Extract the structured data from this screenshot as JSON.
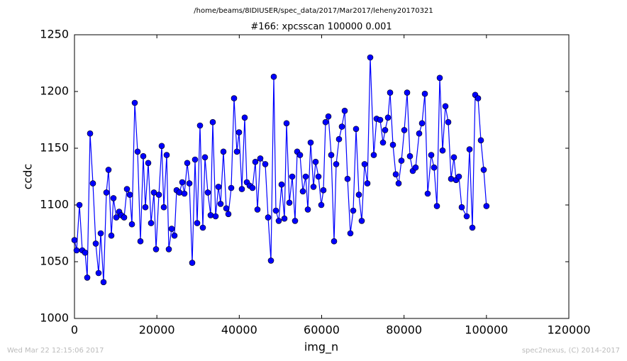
{
  "chart_data": {
    "type": "line",
    "suptitle": "/home/beams/8IDIUSER/spec_data/2017/Mar2017/leheny20170321",
    "title": "#166: xpcsscan 100000 0.001",
    "xlabel": "img_n",
    "ylabel": "ccdc",
    "footer_left": "Wed Mar 22 12:15:06 2017",
    "footer_right": "spec2nexus, (C) 2014-2017",
    "xlim": [
      0,
      120000
    ],
    "xticks": [
      0,
      20000,
      40000,
      60000,
      80000,
      100000,
      120000
    ],
    "ylim": [
      1000,
      1250
    ],
    "yticks": [
      1000,
      1050,
      1100,
      1150,
      1200,
      1250
    ],
    "grid": false,
    "x": [
      0,
      517,
      1205,
      1894,
      2583,
      3099,
      3788,
      4476,
      5165,
      5854,
      6370,
      7059,
      7748,
      8264,
      8953,
      9469,
      10158,
      10847,
      11363,
      12052,
      12740,
      13429,
      13946,
      14634,
      15323,
      16012,
      16700,
      17217,
      17906,
      18594,
      19283,
      19799,
      20488,
      21177,
      21693,
      22382,
      22898,
      23587,
      24276,
      24792,
      25481,
      26169,
      26686,
      27375,
      27891,
      28580,
      29268,
      29785,
      30473,
      31162,
      31679,
      32367,
      33056,
      33572,
      34261,
      34950,
      35466,
      36155,
      36844,
      37360,
      38049,
      38737,
      39426,
      39943,
      40631,
      41320,
      41836,
      42525,
      43214,
      43902,
      44419,
      45108,
      46313,
      47001,
      47690,
      48379,
      48895,
      49584,
      50273,
      50961,
      51478,
      52166,
      52855,
      53544,
      54060,
      54749,
      55438,
      56126,
      56643,
      57331,
      58020,
      58537,
      59225,
      59914,
      60430,
      60947,
      61636,
      62324,
      63013,
      63529,
      64218,
      64907,
      65595,
      66284,
      66973,
      67661,
      68350,
      69039,
      69727,
      70416,
      71105,
      71793,
      72654,
      73343,
      74204,
      74893,
      75409,
      76098,
      76614,
      77303,
      77992,
      78680,
      79369,
      80058,
      80746,
      81435,
      82124,
      82812,
      83673,
      84362,
      85051,
      85739,
      86600,
      87289,
      87977,
      88666,
      89355,
      90043,
      90732,
      91421,
      92109,
      92626,
      93314,
      94003,
      95208,
      95897,
      96585,
      97274,
      97963,
      98651,
      99340,
      100000
    ],
    "series": [
      {
        "name": "ccdc",
        "color": "#0000ff",
        "values": [
          1069,
          1060,
          1100,
          1060,
          1058,
          1036,
          1163,
          1119,
          1066,
          1040,
          1075,
          1032,
          1111,
          1131,
          1073,
          1106,
          1089,
          1094,
          1091,
          1089,
          1114,
          1109,
          1083,
          1190,
          1147,
          1068,
          1143,
          1098,
          1137,
          1084,
          1111,
          1061,
          1109,
          1152,
          1098,
          1144,
          1061,
          1079,
          1073,
          1113,
          1111,
          1120,
          1110,
          1137,
          1119,
          1049,
          1140,
          1084,
          1170,
          1080,
          1142,
          1111,
          1091,
          1173,
          1090,
          1116,
          1101,
          1147,
          1097,
          1092,
          1115,
          1194,
          1147,
          1164,
          1114,
          1177,
          1120,
          1117,
          1115,
          1138,
          1096,
          1141,
          1136,
          1089,
          1051,
          1213,
          1095,
          1086,
          1118,
          1088,
          1172,
          1102,
          1125,
          1086,
          1147,
          1144,
          1112,
          1125,
          1096,
          1155,
          1116,
          1138,
          1125,
          1100,
          1113,
          1173,
          1178,
          1144,
          1068,
          1136,
          1158,
          1169,
          1183,
          1123,
          1075,
          1095,
          1167,
          1109,
          1086,
          1136,
          1119,
          1230,
          1144,
          1176,
          1175,
          1155,
          1166,
          1177,
          1199,
          1153,
          1127,
          1119,
          1139,
          1166,
          1199,
          1143,
          1130,
          1133,
          1163,
          1172,
          1198,
          1110,
          1144,
          1133,
          1099,
          1212,
          1148,
          1187,
          1173,
          1123,
          1142,
          1122,
          1125,
          1098,
          1090,
          1149,
          1080,
          1197,
          1194,
          1157,
          1131,
          1099
        ]
      }
    ]
  }
}
